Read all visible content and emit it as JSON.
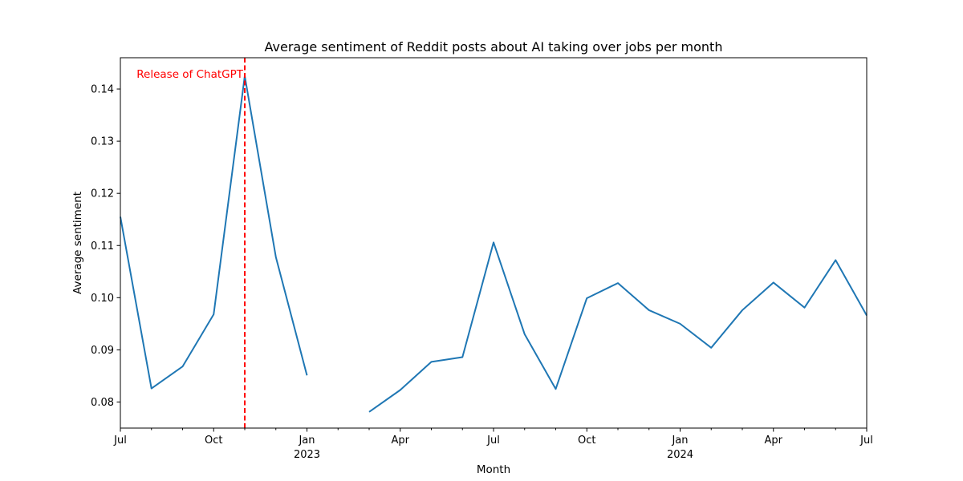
{
  "chart_data": {
    "type": "line",
    "title": "Average sentiment of Reddit posts about AI taking over jobs per month",
    "xlabel": "Month",
    "ylabel": "Average sentiment",
    "xlim": [
      "2022-07",
      "2024-07"
    ],
    "ylim": [
      0.075,
      0.146
    ],
    "grid": false,
    "legend": "none",
    "x_major_ticks": [
      {
        "month": "2022-07",
        "label": "Jul",
        "sublabel": ""
      },
      {
        "month": "2022-10",
        "label": "Oct",
        "sublabel": ""
      },
      {
        "month": "2023-01",
        "label": "Jan",
        "sublabel": "2023"
      },
      {
        "month": "2023-04",
        "label": "Apr",
        "sublabel": ""
      },
      {
        "month": "2023-07",
        "label": "Jul",
        "sublabel": ""
      },
      {
        "month": "2023-10",
        "label": "Oct",
        "sublabel": ""
      },
      {
        "month": "2024-01",
        "label": "Jan",
        "sublabel": "2024"
      },
      {
        "month": "2024-04",
        "label": "Apr",
        "sublabel": ""
      },
      {
        "month": "2024-07",
        "label": "Jul",
        "sublabel": ""
      }
    ],
    "y_ticks": [
      {
        "value": 0.08,
        "label": "0.08"
      },
      {
        "value": 0.09,
        "label": "0.09"
      },
      {
        "value": 0.1,
        "label": "0.10"
      },
      {
        "value": 0.11,
        "label": "0.11"
      },
      {
        "value": 0.12,
        "label": "0.12"
      },
      {
        "value": 0.13,
        "label": "0.13"
      },
      {
        "value": 0.14,
        "label": "0.14"
      }
    ],
    "series": [
      {
        "color": "#1f77b4",
        "points": [
          {
            "x": "2022-07",
            "y": 0.1155
          },
          {
            "x": "2022-08",
            "y": 0.0826
          },
          {
            "x": "2022-09",
            "y": 0.0868
          },
          {
            "x": "2022-10",
            "y": 0.0968
          },
          {
            "x": "2022-11",
            "y": 0.1425
          },
          {
            "x": "2022-12",
            "y": 0.1078
          },
          {
            "x": "2023-01",
            "y": 0.0851
          },
          {
            "x": "2023-02",
            "y": null
          },
          {
            "x": "2023-03",
            "y": 0.0781
          },
          {
            "x": "2023-04",
            "y": 0.0823
          },
          {
            "x": "2023-05",
            "y": 0.0877
          },
          {
            "x": "2023-06",
            "y": 0.0886
          },
          {
            "x": "2023-07",
            "y": 0.1106
          },
          {
            "x": "2023-08",
            "y": 0.093
          },
          {
            "x": "2023-09",
            "y": 0.0825
          },
          {
            "x": "2023-10",
            "y": 0.0999
          },
          {
            "x": "2023-11",
            "y": 0.1028
          },
          {
            "x": "2023-12",
            "y": 0.0976
          },
          {
            "x": "2024-01",
            "y": 0.095
          },
          {
            "x": "2024-02",
            "y": 0.0904
          },
          {
            "x": "2024-03",
            "y": 0.0976
          },
          {
            "x": "2024-04",
            "y": 0.1029
          },
          {
            "x": "2024-05",
            "y": 0.0981
          },
          {
            "x": "2024-06",
            "y": 0.1072
          },
          {
            "x": "2024-07",
            "y": 0.0966
          }
        ]
      }
    ],
    "annotations": [
      {
        "type": "vline",
        "x": "2022-11",
        "color": "#ff0000",
        "style": "dashed",
        "label": "Release of ChatGPT"
      }
    ]
  }
}
